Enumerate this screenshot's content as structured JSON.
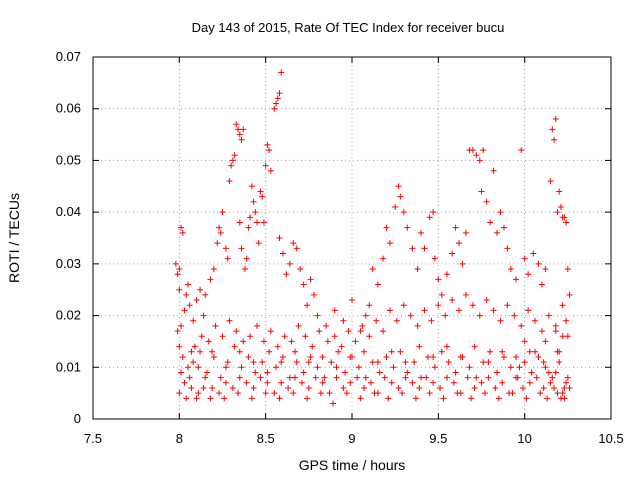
{
  "chart_data": {
    "type": "scatter",
    "title": "Day 143 of 2015, Rate Of TEC Index for receiver bucu",
    "xlabel": "GPS time / hours",
    "ylabel": "ROTI / TECUs",
    "xlim": [
      7.5,
      10.5
    ],
    "ylim": [
      0,
      0.07
    ],
    "xticks": [
      "7.5",
      "8",
      "8.5",
      "9",
      "9.5",
      "10",
      "10.5"
    ],
    "yticks": [
      "0",
      "0.01",
      "0.02",
      "0.03",
      "0.04",
      "0.05",
      "0.06",
      "0.07"
    ],
    "grid": true,
    "marker": "+",
    "color": "#ff0000",
    "points": [
      [
        7.98,
        0.03
      ],
      [
        7.99,
        0.028
      ],
      [
        8.0,
        0.029
      ],
      [
        8.0,
        0.025
      ],
      [
        8.01,
        0.037
      ],
      [
        8.02,
        0.036
      ],
      [
        7.99,
        0.017
      ],
      [
        8.0,
        0.014
      ],
      [
        8.01,
        0.018
      ],
      [
        8.03,
        0.021
      ],
      [
        8.04,
        0.024
      ],
      [
        8.05,
        0.026
      ],
      [
        8.06,
        0.022
      ],
      [
        8.08,
        0.019
      ],
      [
        8.1,
        0.023
      ],
      [
        8.12,
        0.025
      ],
      [
        8.14,
        0.02
      ],
      [
        8.15,
        0.024
      ],
      [
        8.18,
        0.027
      ],
      [
        8.2,
        0.029
      ],
      [
        8.22,
        0.034
      ],
      [
        8.23,
        0.037
      ],
      [
        8.24,
        0.036
      ],
      [
        8.25,
        0.04
      ],
      [
        8.27,
        0.033
      ],
      [
        8.28,
        0.031
      ],
      [
        8.29,
        0.046
      ],
      [
        8.3,
        0.049
      ],
      [
        8.31,
        0.05
      ],
      [
        8.32,
        0.051
      ],
      [
        8.33,
        0.057
      ],
      [
        8.34,
        0.056
      ],
      [
        8.35,
        0.055
      ],
      [
        8.36,
        0.054
      ],
      [
        8.37,
        0.056
      ],
      [
        8.35,
        0.038
      ],
      [
        8.36,
        0.033
      ],
      [
        8.38,
        0.029
      ],
      [
        8.39,
        0.031
      ],
      [
        8.4,
        0.037
      ],
      [
        8.41,
        0.039
      ],
      [
        8.42,
        0.045
      ],
      [
        8.43,
        0.042
      ],
      [
        8.44,
        0.04
      ],
      [
        8.45,
        0.038
      ],
      [
        8.46,
        0.034
      ],
      [
        8.47,
        0.044
      ],
      [
        8.48,
        0.043
      ],
      [
        8.49,
        0.038
      ],
      [
        8.5,
        0.049
      ],
      [
        8.51,
        0.053
      ],
      [
        8.52,
        0.052
      ],
      [
        8.53,
        0.048
      ],
      [
        8.55,
        0.06
      ],
      [
        8.56,
        0.061
      ],
      [
        8.57,
        0.062
      ],
      [
        8.58,
        0.063
      ],
      [
        8.59,
        0.067
      ],
      [
        8.58,
        0.035
      ],
      [
        8.6,
        0.032
      ],
      [
        8.62,
        0.028
      ],
      [
        8.64,
        0.03
      ],
      [
        8.66,
        0.034
      ],
      [
        8.68,
        0.033
      ],
      [
        8.7,
        0.029
      ],
      [
        8.72,
        0.026
      ],
      [
        8.74,
        0.022
      ],
      [
        8.76,
        0.027
      ],
      [
        8.78,
        0.024
      ],
      [
        8.8,
        0.02
      ],
      [
        8.85,
        0.018
      ],
      [
        8.9,
        0.021
      ],
      [
        8.95,
        0.019
      ],
      [
        9.0,
        0.023
      ],
      [
        9.05,
        0.017
      ],
      [
        9.08,
        0.02
      ],
      [
        9.1,
        0.022
      ],
      [
        9.12,
        0.029
      ],
      [
        9.15,
        0.026
      ],
      [
        9.18,
        0.031
      ],
      [
        9.2,
        0.037
      ],
      [
        9.22,
        0.034
      ],
      [
        9.25,
        0.041
      ],
      [
        9.27,
        0.045
      ],
      [
        9.28,
        0.043
      ],
      [
        9.3,
        0.04
      ],
      [
        9.32,
        0.037
      ],
      [
        9.35,
        0.033
      ],
      [
        9.38,
        0.029
      ],
      [
        9.4,
        0.036
      ],
      [
        9.42,
        0.033
      ],
      [
        9.45,
        0.039
      ],
      [
        9.47,
        0.04
      ],
      [
        9.48,
        0.031
      ],
      [
        9.5,
        0.027
      ],
      [
        9.52,
        0.024
      ],
      [
        9.55,
        0.028
      ],
      [
        9.58,
        0.032
      ],
      [
        9.6,
        0.037
      ],
      [
        9.62,
        0.034
      ],
      [
        9.64,
        0.03
      ],
      [
        9.66,
        0.036
      ],
      [
        9.68,
        0.052
      ],
      [
        9.7,
        0.052
      ],
      [
        9.72,
        0.051
      ],
      [
        9.74,
        0.05
      ],
      [
        9.76,
        0.052
      ],
      [
        9.75,
        0.044
      ],
      [
        9.78,
        0.042
      ],
      [
        9.8,
        0.038
      ],
      [
        9.82,
        0.048
      ],
      [
        9.84,
        0.036
      ],
      [
        9.86,
        0.04
      ],
      [
        9.88,
        0.037
      ],
      [
        9.9,
        0.033
      ],
      [
        9.92,
        0.029
      ],
      [
        9.95,
        0.027
      ],
      [
        9.98,
        0.052
      ],
      [
        10.0,
        0.031
      ],
      [
        10.02,
        0.028
      ],
      [
        10.05,
        0.032
      ],
      [
        10.08,
        0.03
      ],
      [
        10.1,
        0.026
      ],
      [
        10.12,
        0.029
      ],
      [
        10.15,
        0.046
      ],
      [
        10.16,
        0.056
      ],
      [
        10.17,
        0.054
      ],
      [
        10.18,
        0.058
      ],
      [
        10.19,
        0.04
      ],
      [
        10.2,
        0.044
      ],
      [
        10.21,
        0.041
      ],
      [
        10.22,
        0.039
      ],
      [
        10.23,
        0.039
      ],
      [
        10.24,
        0.038
      ],
      [
        10.25,
        0.029
      ],
      [
        10.26,
        0.024
      ],
      [
        10.24,
        0.019
      ],
      [
        10.22,
        0.016
      ],
      [
        10.2,
        0.013
      ],
      [
        10.18,
        0.017
      ],
      [
        8.02,
        0.012
      ],
      [
        8.05,
        0.01
      ],
      [
        8.08,
        0.011
      ],
      [
        8.12,
        0.013
      ],
      [
        8.16,
        0.009
      ],
      [
        8.2,
        0.012
      ],
      [
        8.24,
        0.008
      ],
      [
        8.28,
        0.011
      ],
      [
        8.32,
        0.014
      ],
      [
        8.36,
        0.01
      ],
      [
        8.4,
        0.012
      ],
      [
        8.44,
        0.009
      ],
      [
        8.48,
        0.011
      ],
      [
        8.52,
        0.013
      ],
      [
        8.56,
        0.01
      ],
      [
        8.6,
        0.012
      ],
      [
        8.64,
        0.008
      ],
      [
        8.68,
        0.011
      ],
      [
        8.72,
        0.009
      ],
      [
        8.76,
        0.012
      ],
      [
        8.8,
        0.01
      ],
      [
        8.84,
        0.008
      ],
      [
        8.88,
        0.011
      ],
      [
        8.92,
        0.013
      ],
      [
        8.96,
        0.009
      ],
      [
        9.0,
        0.012
      ],
      [
        9.04,
        0.01
      ],
      [
        9.08,
        0.008
      ],
      [
        9.12,
        0.011
      ],
      [
        9.16,
        0.009
      ],
      [
        9.2,
        0.012
      ],
      [
        9.24,
        0.01
      ],
      [
        9.28,
        0.013
      ],
      [
        9.32,
        0.009
      ],
      [
        9.36,
        0.011
      ],
      [
        9.4,
        0.008
      ],
      [
        9.44,
        0.012
      ],
      [
        9.48,
        0.01
      ],
      [
        9.52,
        0.013
      ],
      [
        9.56,
        0.011
      ],
      [
        9.6,
        0.009
      ],
      [
        9.64,
        0.012
      ],
      [
        9.68,
        0.01
      ],
      [
        9.72,
        0.008
      ],
      [
        9.76,
        0.011
      ],
      [
        9.8,
        0.013
      ],
      [
        9.84,
        0.009
      ],
      [
        9.88,
        0.012
      ],
      [
        9.92,
        0.01
      ],
      [
        9.96,
        0.008
      ],
      [
        10.0,
        0.011
      ],
      [
        10.04,
        0.009
      ],
      [
        10.08,
        0.012
      ],
      [
        10.12,
        0.01
      ],
      [
        10.16,
        0.008
      ],
      [
        10.2,
        0.011
      ],
      [
        10.24,
        0.007
      ],
      [
        10.26,
        0.006
      ],
      [
        10.22,
        0.005
      ],
      [
        10.18,
        0.009
      ],
      [
        8.0,
        0.005
      ],
      [
        8.03,
        0.007
      ],
      [
        8.07,
        0.006
      ],
      [
        8.11,
        0.005
      ],
      [
        8.15,
        0.008
      ],
      [
        8.19,
        0.006
      ],
      [
        8.23,
        0.005
      ],
      [
        8.27,
        0.007
      ],
      [
        8.31,
        0.006
      ],
      [
        8.35,
        0.008
      ],
      [
        8.39,
        0.007
      ],
      [
        8.43,
        0.006
      ],
      [
        8.47,
        0.008
      ],
      [
        8.51,
        0.007
      ],
      [
        8.55,
        0.005
      ],
      [
        8.59,
        0.007
      ],
      [
        8.63,
        0.006
      ],
      [
        8.67,
        0.008
      ],
      [
        8.71,
        0.007
      ],
      [
        8.75,
        0.006
      ],
      [
        8.79,
        0.008
      ],
      [
        8.83,
        0.007
      ],
      [
        8.87,
        0.005
      ],
      [
        8.91,
        0.008
      ],
      [
        8.95,
        0.006
      ],
      [
        8.99,
        0.007
      ],
      [
        9.03,
        0.008
      ],
      [
        9.07,
        0.006
      ],
      [
        9.11,
        0.007
      ],
      [
        9.15,
        0.005
      ],
      [
        9.19,
        0.008
      ],
      [
        9.23,
        0.007
      ],
      [
        9.27,
        0.006
      ],
      [
        9.31,
        0.008
      ],
      [
        9.35,
        0.007
      ],
      [
        9.39,
        0.006
      ],
      [
        9.43,
        0.008
      ],
      [
        9.47,
        0.007
      ],
      [
        9.51,
        0.006
      ],
      [
        9.55,
        0.008
      ],
      [
        9.59,
        0.007
      ],
      [
        9.63,
        0.005
      ],
      [
        9.67,
        0.008
      ],
      [
        9.71,
        0.006
      ],
      [
        9.75,
        0.007
      ],
      [
        9.79,
        0.008
      ],
      [
        9.83,
        0.006
      ],
      [
        9.87,
        0.007
      ],
      [
        9.91,
        0.005
      ],
      [
        9.95,
        0.008
      ],
      [
        9.99,
        0.006
      ],
      [
        10.03,
        0.007
      ],
      [
        10.07,
        0.008
      ],
      [
        10.11,
        0.006
      ],
      [
        10.15,
        0.007
      ],
      [
        10.19,
        0.005
      ],
      [
        10.23,
        0.006
      ],
      [
        10.25,
        0.008
      ],
      [
        10.21,
        0.004
      ],
      [
        10.17,
        0.006
      ],
      [
        8.01,
        0.009
      ],
      [
        8.06,
        0.008
      ],
      [
        8.09,
        0.014
      ],
      [
        8.13,
        0.016
      ],
      [
        8.17,
        0.015
      ],
      [
        8.21,
        0.018
      ],
      [
        8.25,
        0.016
      ],
      [
        8.29,
        0.019
      ],
      [
        8.33,
        0.017
      ],
      [
        8.37,
        0.015
      ],
      [
        8.41,
        0.016
      ],
      [
        8.45,
        0.018
      ],
      [
        8.49,
        0.015
      ],
      [
        8.53,
        0.017
      ],
      [
        8.57,
        0.014
      ],
      [
        8.61,
        0.016
      ],
      [
        8.65,
        0.015
      ],
      [
        8.69,
        0.018
      ],
      [
        8.73,
        0.016
      ],
      [
        8.77,
        0.014
      ],
      [
        8.81,
        0.017
      ],
      [
        8.86,
        0.015
      ],
      [
        8.9,
        0.016
      ],
      [
        8.94,
        0.014
      ],
      [
        8.98,
        0.017
      ],
      [
        9.02,
        0.015
      ],
      [
        9.06,
        0.018
      ],
      [
        9.1,
        0.016
      ],
      [
        9.14,
        0.019
      ],
      [
        9.18,
        0.017
      ],
      [
        9.22,
        0.021
      ],
      [
        9.26,
        0.019
      ],
      [
        9.3,
        0.022
      ],
      [
        9.34,
        0.02
      ],
      [
        9.38,
        0.018
      ],
      [
        9.42,
        0.021
      ],
      [
        9.46,
        0.019
      ],
      [
        9.5,
        0.022
      ],
      [
        9.54,
        0.02
      ],
      [
        9.58,
        0.023
      ],
      [
        9.62,
        0.021
      ],
      [
        9.66,
        0.024
      ],
      [
        9.7,
        0.022
      ],
      [
        9.74,
        0.02
      ],
      [
        9.78,
        0.023
      ],
      [
        9.82,
        0.021
      ],
      [
        9.86,
        0.019
      ],
      [
        9.9,
        0.022
      ],
      [
        9.94,
        0.02
      ],
      [
        9.98,
        0.018
      ],
      [
        10.02,
        0.021
      ],
      [
        10.06,
        0.019
      ],
      [
        10.1,
        0.017
      ],
      [
        10.14,
        0.02
      ],
      [
        10.18,
        0.018
      ],
      [
        10.22,
        0.022
      ],
      [
        10.25,
        0.016
      ],
      [
        10.12,
        0.015
      ],
      [
        10.06,
        0.013
      ],
      [
        10.0,
        0.015
      ],
      [
        8.04,
        0.004
      ],
      [
        8.1,
        0.004
      ],
      [
        8.14,
        0.006
      ],
      [
        8.18,
        0.004
      ],
      [
        8.26,
        0.004
      ],
      [
        8.34,
        0.005
      ],
      [
        8.42,
        0.004
      ],
      [
        8.5,
        0.005
      ],
      [
        8.58,
        0.004
      ],
      [
        8.66,
        0.005
      ],
      [
        8.74,
        0.004
      ],
      [
        8.82,
        0.005
      ],
      [
        8.89,
        0.003
      ],
      [
        8.97,
        0.005
      ],
      [
        9.05,
        0.004
      ],
      [
        9.13,
        0.005
      ],
      [
        9.21,
        0.004
      ],
      [
        9.29,
        0.005
      ],
      [
        9.37,
        0.004
      ],
      [
        9.45,
        0.005
      ],
      [
        9.53,
        0.004
      ],
      [
        9.61,
        0.005
      ],
      [
        9.69,
        0.004
      ],
      [
        9.77,
        0.005
      ],
      [
        9.85,
        0.004
      ],
      [
        9.93,
        0.005
      ],
      [
        10.01,
        0.004
      ],
      [
        10.09,
        0.005
      ],
      [
        10.13,
        0.004
      ],
      [
        10.23,
        0.004
      ],
      [
        8.07,
        0.013
      ],
      [
        8.11,
        0.01
      ],
      [
        8.19,
        0.013
      ],
      [
        8.27,
        0.01
      ],
      [
        8.35,
        0.013
      ],
      [
        8.43,
        0.011
      ],
      [
        8.51,
        0.009
      ],
      [
        8.59,
        0.011
      ],
      [
        8.67,
        0.013
      ],
      [
        8.75,
        0.011
      ],
      [
        8.83,
        0.012
      ],
      [
        8.91,
        0.01
      ],
      [
        8.99,
        0.012
      ],
      [
        9.07,
        0.013
      ],
      [
        9.15,
        0.011
      ],
      [
        9.23,
        0.013
      ],
      [
        9.31,
        0.011
      ],
      [
        9.39,
        0.014
      ],
      [
        9.47,
        0.012
      ],
      [
        9.55,
        0.014
      ],
      [
        9.63,
        0.012
      ],
      [
        9.71,
        0.014
      ],
      [
        9.79,
        0.011
      ],
      [
        9.87,
        0.013
      ],
      [
        9.95,
        0.012
      ],
      [
        10.03,
        0.013
      ],
      [
        10.11,
        0.011
      ],
      [
        10.19,
        0.013
      ],
      [
        10.14,
        0.009
      ],
      [
        9.97,
        0.01
      ]
    ]
  }
}
